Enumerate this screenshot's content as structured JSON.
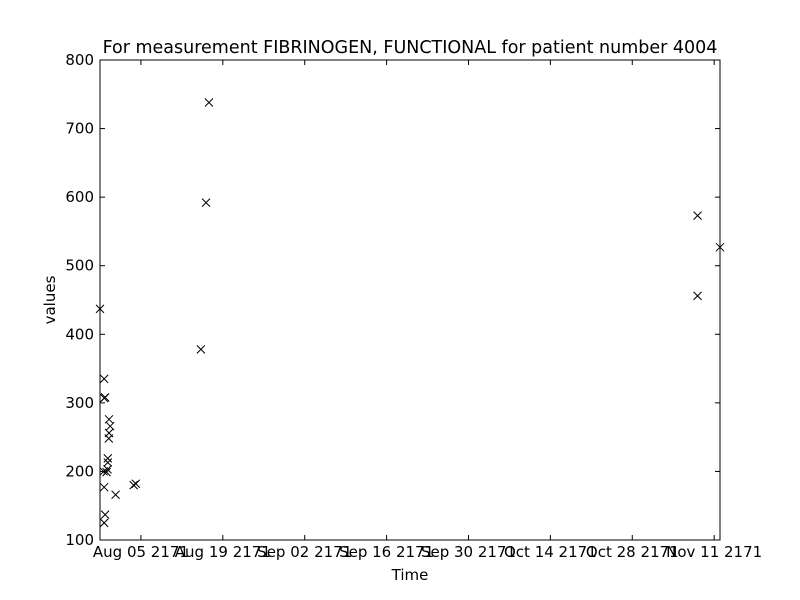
{
  "chart_data": {
    "type": "scatter",
    "title": "For measurement FIBRINOGEN, FUNCTIONAL for patient number 4004",
    "xlabel": "Time",
    "ylabel": "values",
    "ylim": [
      100,
      800
    ],
    "yticks": [
      100,
      200,
      300,
      400,
      500,
      600,
      700,
      800
    ],
    "xlim": [
      "2171-07-29T00:00",
      "2171-11-12T00:00"
    ],
    "xticks": [
      {
        "date": "2171-08-05",
        "label": "Aug 05 2171"
      },
      {
        "date": "2171-08-19",
        "label": "Aug 19 2171"
      },
      {
        "date": "2171-09-02",
        "label": "Sep 02 2171"
      },
      {
        "date": "2171-09-16",
        "label": "Sep 16 2171"
      },
      {
        "date": "2171-09-30",
        "label": "Sep 30 2171"
      },
      {
        "date": "2171-10-14",
        "label": "Oct 14 2171"
      },
      {
        "date": "2171-10-28",
        "label": "Oct 28 2171"
      },
      {
        "date": "2171-11-11",
        "label": "Nov 11 2171"
      }
    ],
    "marker": "x",
    "grid": false,
    "points": [
      {
        "x": "2171-07-29T00:00",
        "y": 437
      },
      {
        "x": "2171-07-29T17:00",
        "y": 335
      },
      {
        "x": "2171-07-29T17:00",
        "y": 307
      },
      {
        "x": "2171-07-29T21:00",
        "y": 308
      },
      {
        "x": "2171-07-29T15:00",
        "y": 200
      },
      {
        "x": "2171-07-29T17:00",
        "y": 177
      },
      {
        "x": "2171-07-29T21:00",
        "y": 137
      },
      {
        "x": "2171-07-29T17:00",
        "y": 125
      },
      {
        "x": "2171-07-30T03:00",
        "y": 199
      },
      {
        "x": "2171-07-30T07:00",
        "y": 203
      },
      {
        "x": "2171-07-30T08:00",
        "y": 219
      },
      {
        "x": "2171-07-30T08:00",
        "y": 213
      },
      {
        "x": "2171-07-30T12:00",
        "y": 248
      },
      {
        "x": "2171-07-30T13:00",
        "y": 256
      },
      {
        "x": "2171-07-30T13:00",
        "y": 276
      },
      {
        "x": "2171-07-30T18:00",
        "y": 266
      },
      {
        "x": "2171-07-31T16:00",
        "y": 166
      },
      {
        "x": "2171-08-03T18:00",
        "y": 180
      },
      {
        "x": "2171-08-04T03:00",
        "y": 182
      },
      {
        "x": "2171-08-15T06:00",
        "y": 378
      },
      {
        "x": "2171-08-16T03:00",
        "y": 592
      },
      {
        "x": "2171-08-16T15:00",
        "y": 738
      },
      {
        "x": "2171-11-08T04:00",
        "y": 573
      },
      {
        "x": "2171-11-08T04:00",
        "y": 456
      },
      {
        "x": "2171-11-12T00:00",
        "y": 527
      }
    ]
  }
}
